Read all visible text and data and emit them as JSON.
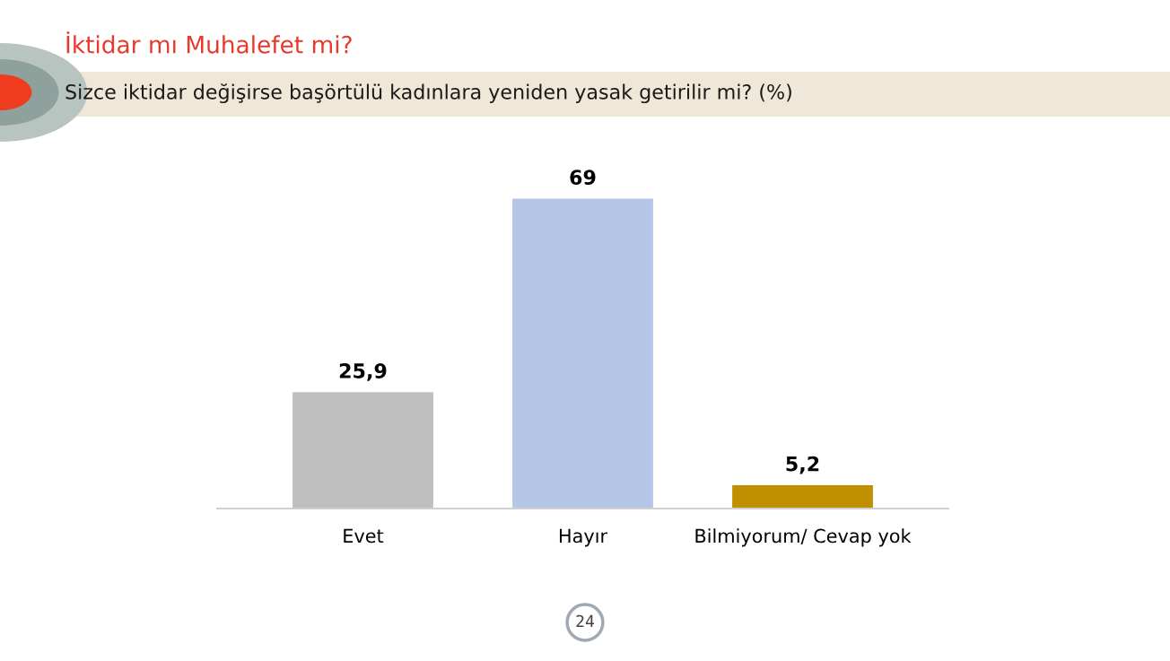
{
  "chart_data": {
    "type": "bar",
    "title": "İktidar mı Muhalefet mi?",
    "subtitle": "Sizce iktidar değişirse başörtülü kadınlara yeniden yasak getirilir mi? (%)",
    "categories": [
      "Evet",
      "Hayır",
      "Bilmiyorum/ Cevap yok"
    ],
    "values": [
      25.9,
      69,
      5.2
    ],
    "value_labels": [
      "25,9",
      "69",
      "5,2"
    ],
    "colors": [
      "#bfbfbf",
      "#b4c7e7",
      "#bf9000"
    ],
    "annotations": [
      "24"
    ],
    "grid": false,
    "tick_labels": "x"
  }
}
